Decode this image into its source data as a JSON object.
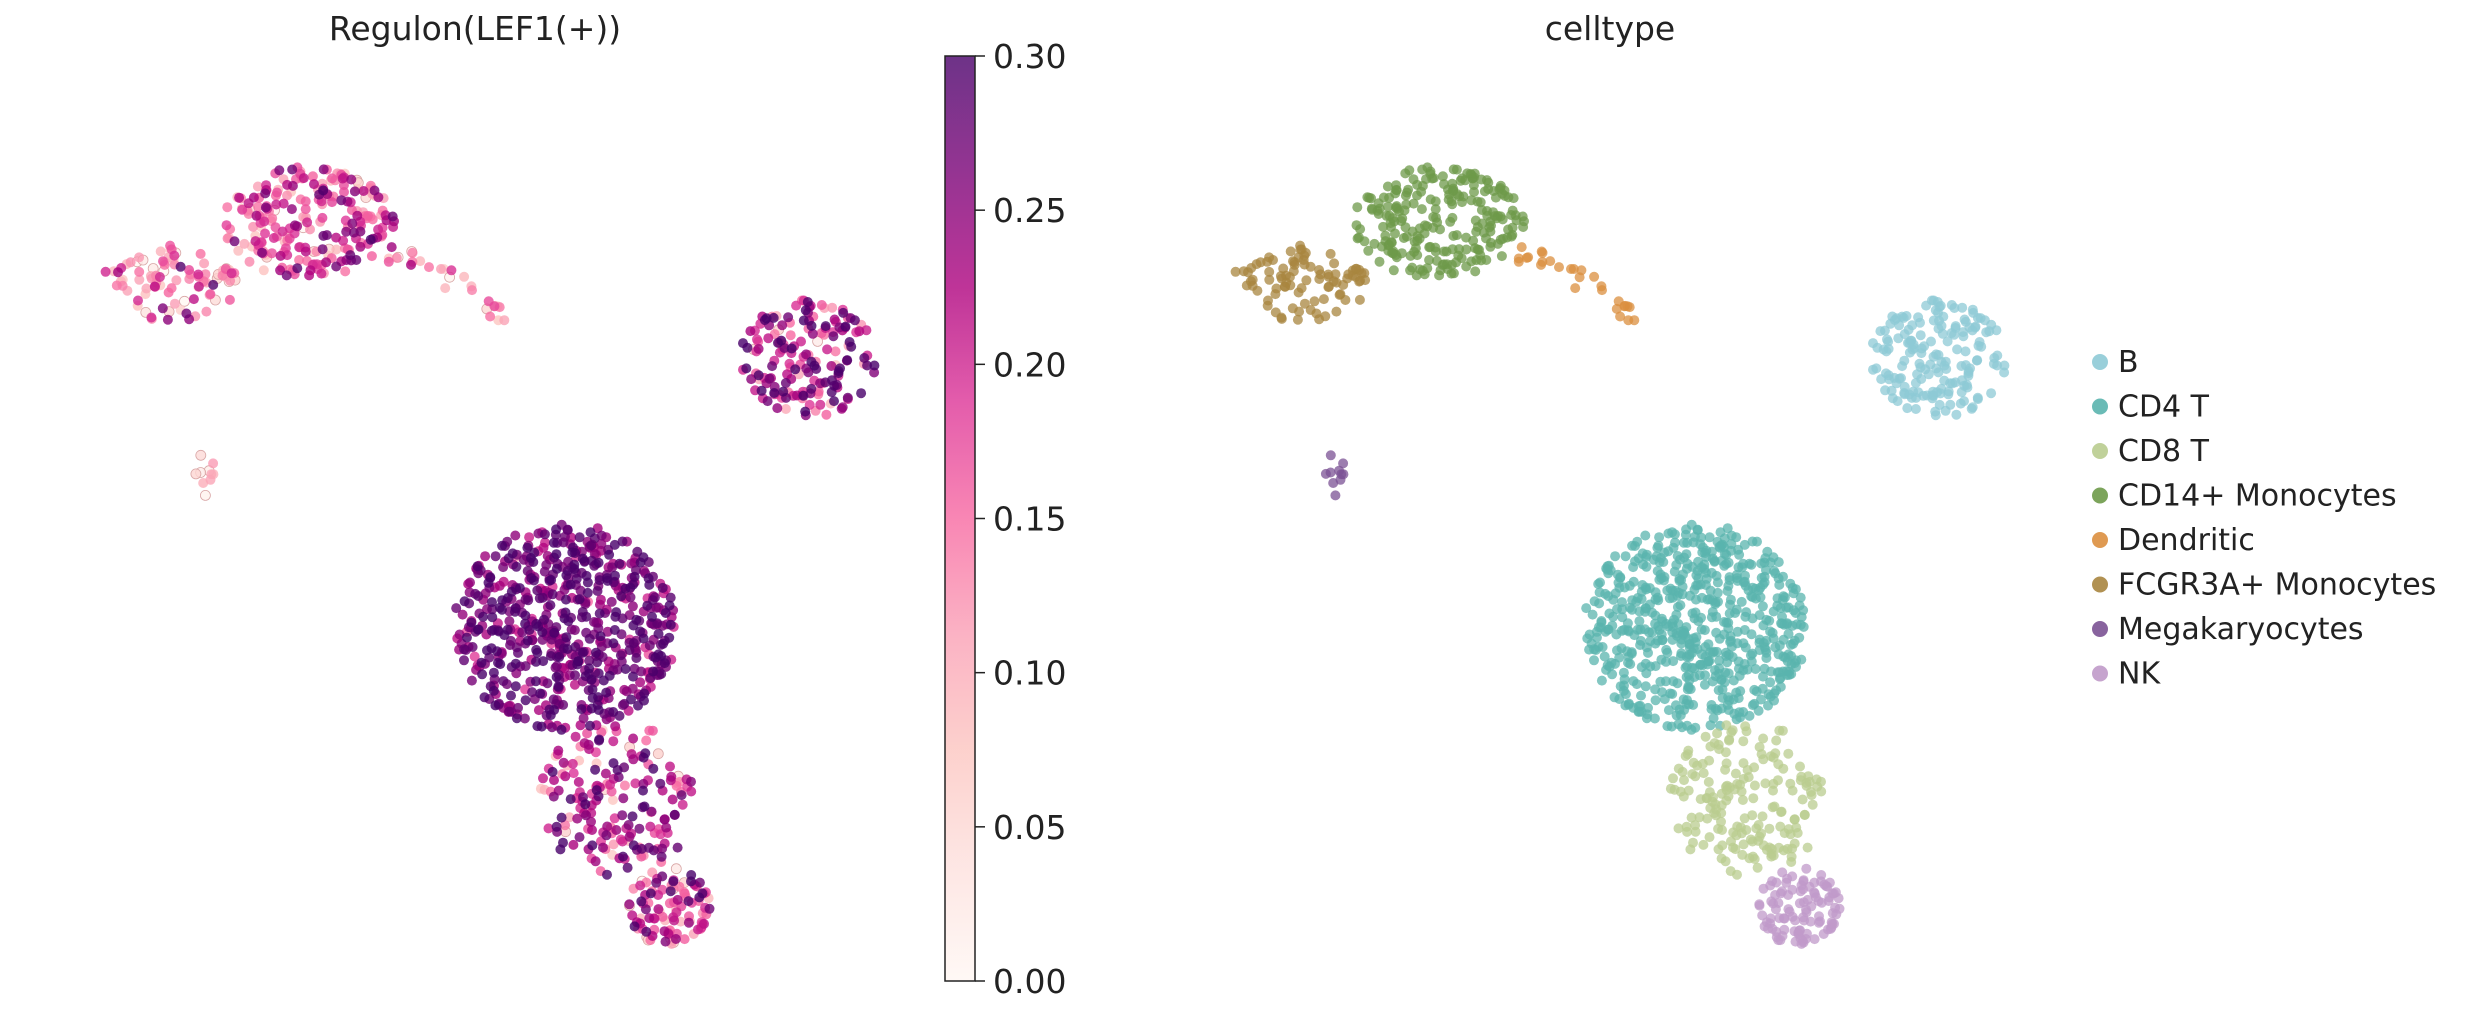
{
  "chart_data": [
    {
      "type": "scatter",
      "title": "Regulon(LEF1(+))",
      "xlabel": "",
      "ylabel": "",
      "color_by": "continuous",
      "colorbar": {
        "min": 0.0,
        "max": 0.3,
        "ticks": [
          "0.00",
          "0.05",
          "0.10",
          "0.15",
          "0.20",
          "0.25",
          "0.30"
        ],
        "colormap": [
          "#fff7f3",
          "#fde0dd",
          "#fcc5c0",
          "#fa9fb5",
          "#f768a1",
          "#dd3497",
          "#ae017e",
          "#7a0177",
          "#49006a"
        ]
      },
      "clusters": [
        {
          "name": "CD14+ Monocytes",
          "cx": 0.3,
          "cy": 0.84,
          "rx": 0.1,
          "ry": 0.065,
          "n": 230,
          "value_mean": 0.17,
          "value_sd": 0.07
        },
        {
          "name": "FCGR3A+ Monocytes",
          "cx": 0.14,
          "cy": 0.77,
          "rx": 0.08,
          "ry": 0.045,
          "n": 90,
          "value_mean": 0.13,
          "value_sd": 0.07
        },
        {
          "name": "Dendritic",
          "type": "arc",
          "from": [
            0.4,
            0.8
          ],
          "to": [
            0.53,
            0.73
          ],
          "n": 28,
          "value_mean": 0.12,
          "value_sd": 0.06
        },
        {
          "name": "Megakaryocytes",
          "cx": 0.18,
          "cy": 0.55,
          "rx": 0.012,
          "ry": 0.03,
          "n": 10,
          "value_mean": 0.05,
          "value_sd": 0.04
        },
        {
          "name": "B",
          "cx": 0.88,
          "cy": 0.68,
          "rx": 0.08,
          "ry": 0.07,
          "n": 170,
          "value_mean": 0.22,
          "value_sd": 0.07
        },
        {
          "name": "CD4 T",
          "cx": 0.6,
          "cy": 0.37,
          "rx": 0.13,
          "ry": 0.12,
          "n": 600,
          "value_mean": 0.27,
          "value_sd": 0.04
        },
        {
          "name": "CD8 T",
          "cx": 0.66,
          "cy": 0.17,
          "rx": 0.09,
          "ry": 0.09,
          "n": 180,
          "value_mean": 0.22,
          "value_sd": 0.07
        },
        {
          "name": "NK",
          "cx": 0.72,
          "cy": 0.045,
          "rx": 0.05,
          "ry": 0.045,
          "n": 100,
          "value_mean": 0.18,
          "value_sd": 0.08
        }
      ]
    },
    {
      "type": "scatter",
      "title": "celltype",
      "xlabel": "",
      "ylabel": "",
      "color_by": "category",
      "legend": [
        {
          "label": "B",
          "color": "#8ecad6"
        },
        {
          "label": "CD4 T",
          "color": "#5ab4ae"
        },
        {
          "label": "CD8 T",
          "color": "#b9cc8f"
        },
        {
          "label": "CD14+ Monocytes",
          "color": "#6e9a49"
        },
        {
          "label": "Dendritic",
          "color": "#db8f3f"
        },
        {
          "label": "FCGR3A+ Monocytes",
          "color": "#a8853f"
        },
        {
          "label": "Megakaryocytes",
          "color": "#7b5294"
        },
        {
          "label": "NK",
          "color": "#c09ac9"
        }
      ],
      "legend_position": "right"
    }
  ]
}
